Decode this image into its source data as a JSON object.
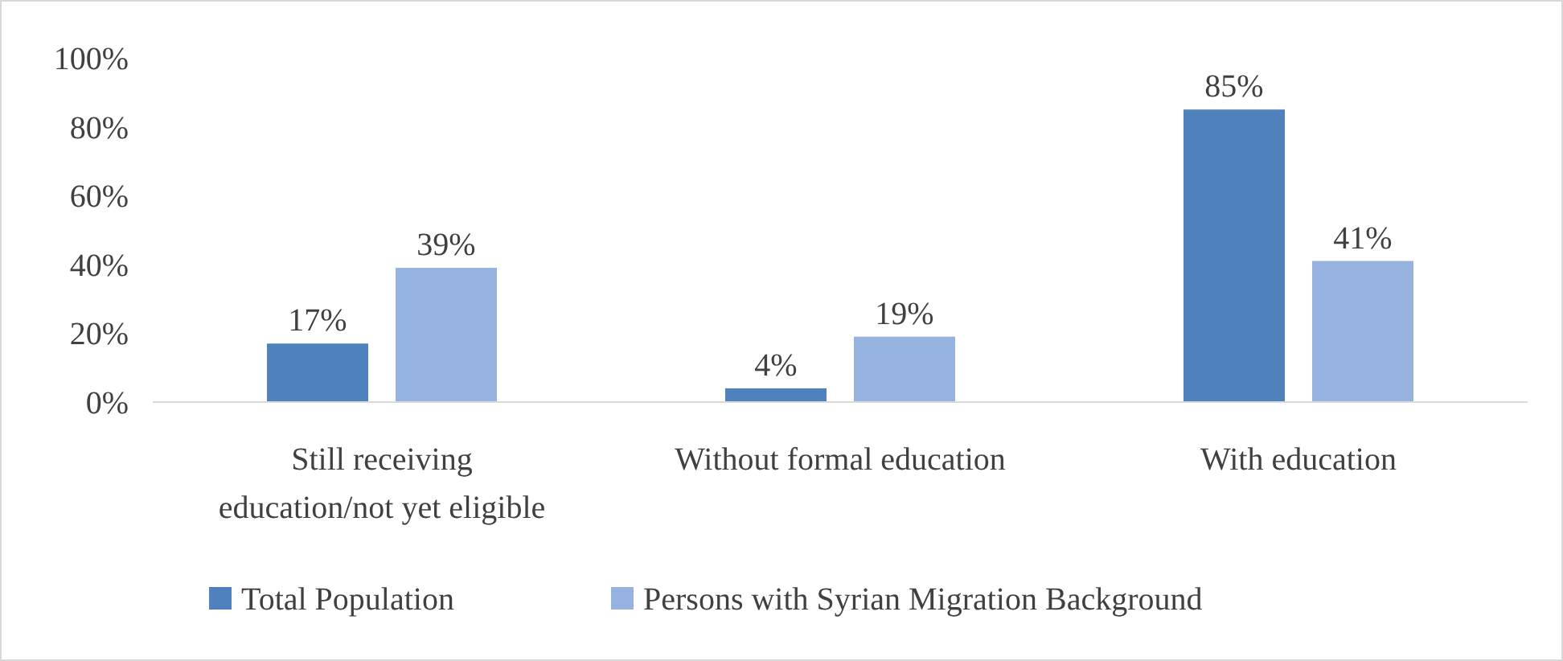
{
  "chart_data": {
    "type": "bar",
    "categories": [
      "Still receiving education/not yet eligible",
      "Without formal education",
      "With education"
    ],
    "series": [
      {
        "name": "Total Population",
        "color": "#4f81bd",
        "values": [
          17,
          4,
          85
        ],
        "value_labels": [
          "17%",
          "4%",
          "85%"
        ]
      },
      {
        "name": "Persons with Syrian Migration Background",
        "color": "#95b3de",
        "values": [
          39,
          19,
          41
        ],
        "value_labels": [
          "39%",
          "19%",
          "41%"
        ]
      }
    ],
    "ylim": [
      0,
      100
    ],
    "yticks": [
      {
        "value": 0,
        "label": "0%"
      },
      {
        "value": 20,
        "label": "20%"
      },
      {
        "value": 40,
        "label": "40%"
      },
      {
        "value": 60,
        "label": "60%"
      },
      {
        "value": 80,
        "label": "80%"
      },
      {
        "value": 100,
        "label": "100%"
      }
    ],
    "legend": "bottom",
    "grid": false
  }
}
